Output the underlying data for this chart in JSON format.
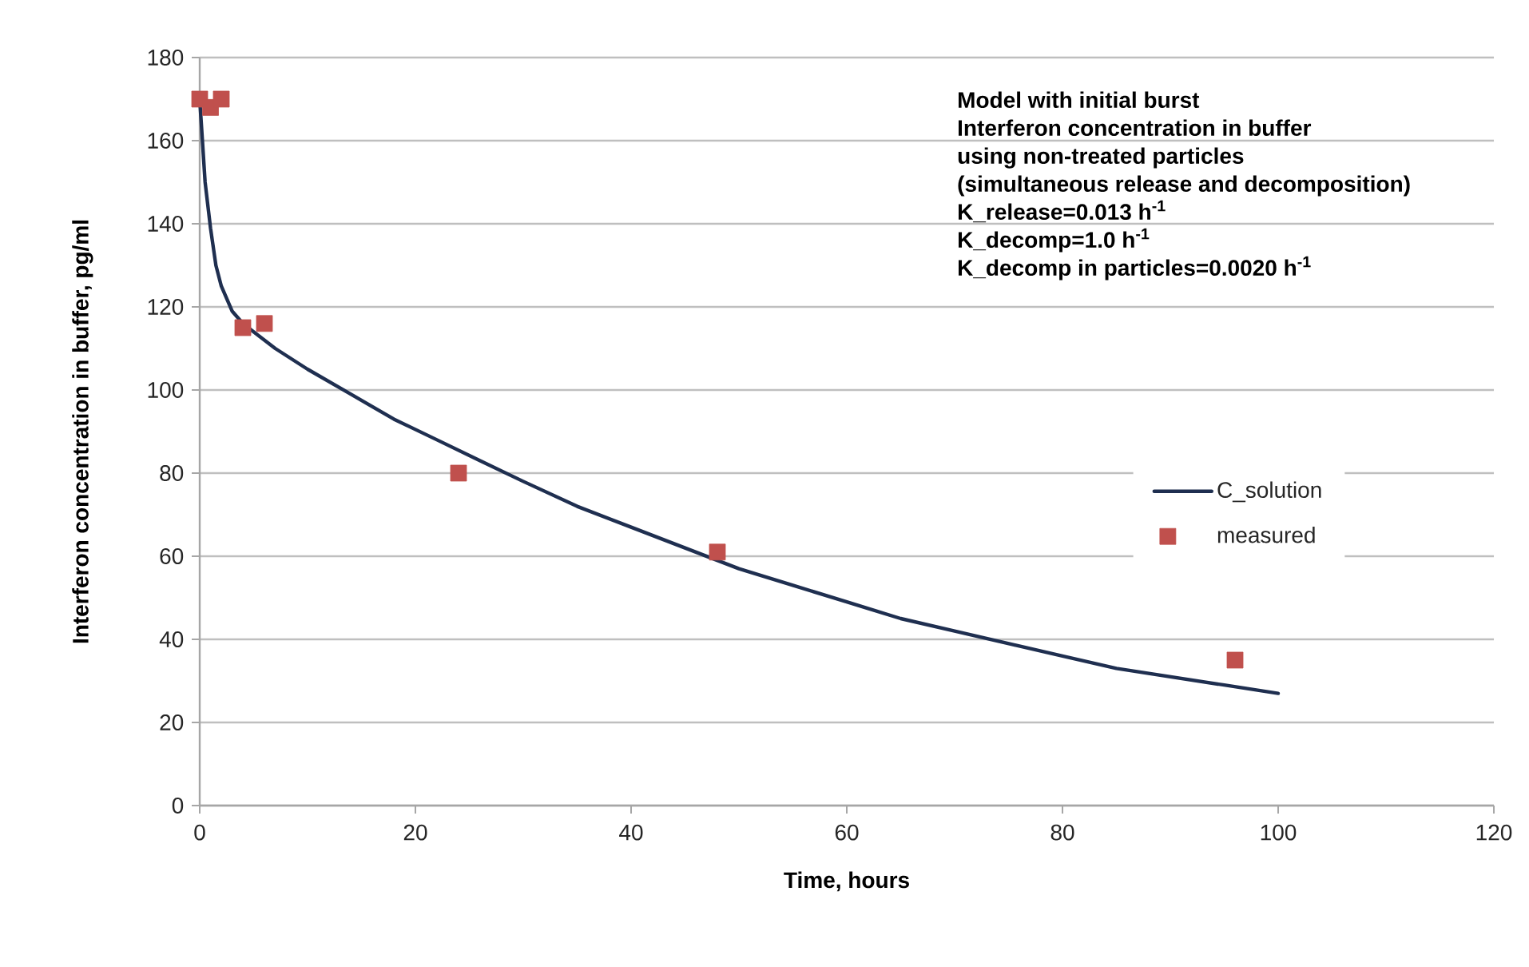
{
  "chart_data": {
    "type": "line",
    "xlabel": "Time, hours",
    "ylabel": "Interferon concentration in buffer, pg/ml",
    "annotations": [
      "Model with initial burst",
      "Interferon concentration in buffer",
      "using non-treated particles",
      "(simultaneous release and decomposition)",
      "K_release=0.013 h$^{-1}$",
      "K_decomp=1.0 h$^{-1}$",
      "K_decomp in particles=0.0020 h$^{-1}$"
    ],
    "xlim": [
      0,
      120
    ],
    "xticks": [
      0,
      20,
      40,
      60,
      80,
      100,
      120
    ],
    "ylim": [
      0,
      180
    ],
    "yticks": [
      0,
      20,
      40,
      60,
      80,
      100,
      120,
      140,
      160,
      180
    ],
    "grid": "y",
    "legend": "right",
    "series": [
      {
        "name": "C_solution",
        "color": "#1f2f50",
        "marker": "none",
        "line_style": "solid",
        "x": [
          0,
          0.5,
          1,
          1.5,
          2,
          3,
          4,
          5,
          7,
          10,
          14,
          18,
          22,
          26,
          30,
          35,
          40,
          45,
          50,
          55,
          60,
          65,
          70,
          75,
          80,
          85,
          90,
          95,
          100
        ],
        "values": [
          170,
          150,
          139,
          130,
          125,
          119,
          116,
          114,
          110,
          105,
          99,
          93,
          88,
          83,
          78,
          72,
          67,
          62,
          57,
          53,
          49,
          45,
          42,
          39,
          36,
          33,
          31,
          29,
          27
        ]
      },
      {
        "name": "measured",
        "type": "scatter",
        "color": "#c0504d",
        "marker": "square",
        "x": [
          0,
          1,
          2,
          4,
          6,
          24,
          48,
          96
        ],
        "values": [
          170,
          168,
          170,
          115,
          116,
          80,
          61,
          35
        ]
      }
    ]
  }
}
